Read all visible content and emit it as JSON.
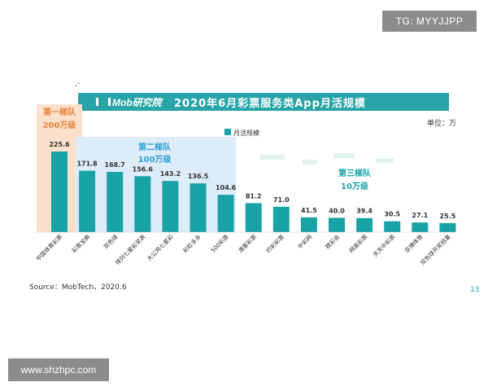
{
  "watermarks": {
    "top_right": "TG: MYYJJPP",
    "bottom_left": "www.shzhpc.com"
  },
  "header": {
    "logo_text": "Mob研究院",
    "title": "2020年6月彩票服务类App月活规模"
  },
  "footer": {
    "source": "Source：MobTech，2020.6",
    "page_number": "13"
  },
  "colors": {
    "bar": "#1aa3a7",
    "title_bar": "#27a5a9",
    "tier1_bg": "#fbe1cc",
    "tier1_text": "#e8833a",
    "tier2_bg": "#dcecf8",
    "tier2_text": "#2e9fd6",
    "tier3_text": "#1aa3a7"
  },
  "chart_data": {
    "type": "bar",
    "categories": [
      "中国体育彩票",
      "彩票宝典",
      "双色球",
      "排列七星彩奖表",
      "大公鸡七星彩",
      "彩虹多多",
      "500彩票",
      "澳客彩票",
      "约彩彩票",
      "中彩网",
      "精彩会",
      "网易彩票",
      "天天中彩票",
      "亚博体育",
      "双色球开奖结果"
    ],
    "series": [
      {
        "name": "月活规模",
        "values": [
          225.6,
          171.8,
          168.7,
          156.6,
          143.2,
          136.5,
          104.6,
          81.2,
          71.0,
          41.5,
          40.0,
          39.4,
          30.5,
          27.1,
          25.5
        ]
      }
    ],
    "value_labels": [
      "225.6",
      "171.8",
      "168.7",
      "156.6",
      "143.2",
      "136.5",
      "104.6",
      "81.2",
      "71.0",
      "41.5",
      "40.0",
      "39.4",
      "30.5",
      "27.1",
      "25.5"
    ],
    "unit": "单位：万",
    "legend_label": "月活规模",
    "legend_position": "top-left",
    "ylim": [
      0,
      260
    ],
    "grid": false,
    "tiers": [
      {
        "line1": "第一梯队",
        "line2": "200万级",
        "from": 0,
        "to": 0
      },
      {
        "line1": "第二梯队",
        "line2": "100万级",
        "from": 1,
        "to": 6
      },
      {
        "line1": "第三梯队",
        "line2": "10万级",
        "from": 7,
        "to": 14
      }
    ]
  }
}
